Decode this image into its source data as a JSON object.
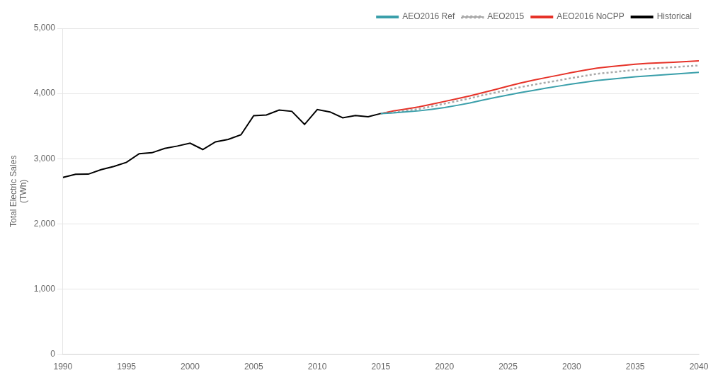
{
  "chart_data": {
    "type": "line",
    "ylabel": "Total Electric Sales\n(TWh)",
    "xlim": [
      1990,
      2040
    ],
    "xticks": [
      1990,
      1995,
      2000,
      2005,
      2010,
      2015,
      2020,
      2025,
      2030,
      2035,
      2040
    ],
    "ylim": [
      0,
      5000
    ],
    "yticks": [
      0,
      {
        "value": 1000,
        "label": "1,000"
      },
      {
        "value": 2000,
        "label": "2,000"
      },
      {
        "value": 3000,
        "label": "3,000"
      },
      {
        "value": 4000,
        "label": "4,000"
      },
      {
        "value": 5000,
        "label": "5,000"
      }
    ],
    "grid": "y",
    "legend": "upper right",
    "series": [
      {
        "name": "Historical",
        "color": "#000000",
        "line_style": "solid",
        "x": [
          1990,
          1991,
          1992,
          1993,
          1994,
          1995,
          1996,
          1997,
          1998,
          1999,
          2000,
          2001,
          2002,
          2003,
          2004,
          2005,
          2006,
          2007,
          2008,
          2009,
          2010,
          2011,
          2012,
          2013,
          2014,
          2015
        ],
        "values": [
          2713,
          2762,
          2763,
          2832,
          2881,
          2944,
          3077,
          3091,
          3158,
          3194,
          3238,
          3141,
          3258,
          3296,
          3366,
          3660,
          3671,
          3745,
          3726,
          3526,
          3754,
          3717,
          3628,
          3663,
          3643,
          3693
        ]
      },
      {
        "name": "AEO2016 NoCPP",
        "color": "#e63228",
        "line_style": "solid",
        "x": [
          2015,
          2016,
          2017,
          2018,
          2019,
          2020,
          2021,
          2022,
          2023,
          2024,
          2025,
          2026,
          2027,
          2028,
          2029,
          2030,
          2031,
          2032,
          2033,
          2034,
          2035,
          2036,
          2037,
          2038,
          2039,
          2040
        ],
        "values": [
          3693,
          3732,
          3762,
          3796,
          3836,
          3878,
          3920,
          3963,
          4012,
          4062,
          4112,
          4162,
          4204,
          4244,
          4282,
          4322,
          4356,
          4389,
          4410,
          4430,
          4450,
          4462,
          4472,
          4480,
          4490,
          4500
        ]
      },
      {
        "name": "AEO2015",
        "color": "#aaaaaa",
        "line_style": "dotted",
        "x": [
          2015,
          2016,
          2017,
          2018,
          2019,
          2020,
          2021,
          2022,
          2023,
          2024,
          2025,
          2026,
          2027,
          2028,
          2029,
          2030,
          2031,
          2032,
          2033,
          2034,
          2035,
          2036,
          2037,
          2038,
          2039,
          2040
        ],
        "values": [
          3693,
          3712,
          3738,
          3762,
          3802,
          3844,
          3884,
          3926,
          3974,
          4014,
          4058,
          4098,
          4134,
          4168,
          4202,
          4238,
          4270,
          4302,
          4322,
          4342,
          4362,
          4377,
          4390,
          4403,
          4417,
          4430
        ]
      },
      {
        "name": "AEO2016 Ref",
        "color": "#3a9faa",
        "line_style": "solid",
        "x": [
          2015,
          2016,
          2017,
          2018,
          2019,
          2020,
          2021,
          2022,
          2023,
          2024,
          2025,
          2026,
          2027,
          2028,
          2029,
          2030,
          2031,
          2032,
          2033,
          2034,
          2035,
          2036,
          2037,
          2038,
          2039,
          2040
        ],
        "values": [
          3693,
          3702,
          3718,
          3734,
          3758,
          3784,
          3818,
          3854,
          3898,
          3938,
          3978,
          4014,
          4048,
          4082,
          4114,
          4144,
          4172,
          4200,
          4218,
          4237,
          4256,
          4270,
          4284,
          4298,
          4312,
          4325
        ]
      }
    ]
  }
}
